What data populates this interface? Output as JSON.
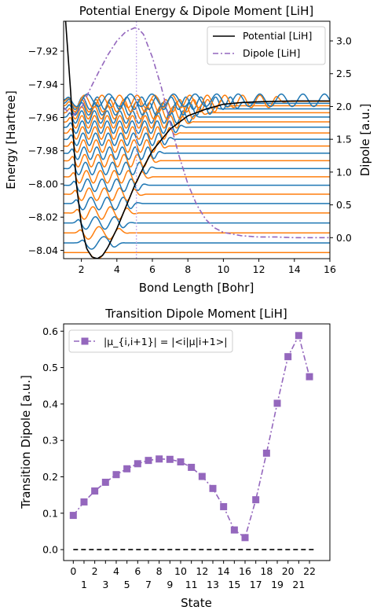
{
  "chart_data": [
    {
      "type": "line",
      "title": "Potential Energy & Dipole Moment [LiH]",
      "xlabel": "Bond Length [Bohr]",
      "ylabel": "Energy [Hartree]",
      "ylabel_right": "Dipole [a.u.]",
      "xlim": [
        1,
        16
      ],
      "ylim": [
        -8.045,
        -7.902
      ],
      "ylim_right": [
        -0.32,
        3.3
      ],
      "xticks": [
        "2",
        "4",
        "6",
        "8",
        "10",
        "12",
        "14",
        "16"
      ],
      "yticks": [
        "−7.92",
        "−7.94",
        "−7.96",
        "−7.98",
        "−8.00",
        "−8.02",
        "−8.04"
      ],
      "yticks_right": [
        "0.0",
        "0.5",
        "1.0",
        "1.5",
        "2.0",
        "2.5",
        "3.0"
      ],
      "legend": [
        "Potential [LiH]",
        "Dipole [LiH]"
      ],
      "legend_position": "upper right",
      "vertical_marker_x": 5.1,
      "colors": {
        "potential": "#000000",
        "dipole": "#9467bd",
        "wave_a": "#1f77b4",
        "wave_b": "#ff7f0e",
        "marker": "#c9b3ec"
      },
      "potential": {
        "name": "Potential [LiH]",
        "x": [
          1.1,
          1.4,
          1.7,
          2.0,
          2.3,
          2.6,
          2.9,
          3.2,
          3.5,
          4.0,
          4.5,
          5.0,
          5.5,
          6.0,
          7.0,
          8.0,
          9.0,
          10.0,
          11.0,
          12.0,
          14.0,
          16.0
        ],
        "y": [
          -7.9,
          -7.945,
          -7.998,
          -8.025,
          -8.039,
          -8.044,
          -8.045,
          -8.043,
          -8.038,
          -8.027,
          -8.014,
          -8.001,
          -7.99,
          -7.98,
          -7.967,
          -7.959,
          -7.955,
          -7.952,
          -7.951,
          -7.9505,
          -7.95,
          -7.95
        ]
      },
      "dipole": {
        "name": "Dipole [LiH]",
        "x": [
          1.0,
          1.5,
          2.0,
          2.5,
          3.0,
          3.5,
          4.0,
          4.5,
          5.0,
          5.2,
          5.5,
          6.0,
          6.5,
          7.0,
          7.5,
          8.0,
          8.5,
          9.0,
          9.5,
          10.0,
          11.0,
          12.0,
          13.0,
          14.0,
          15.0,
          16.0
        ],
        "y": [
          1.98,
          1.86,
          1.98,
          2.27,
          2.54,
          2.79,
          3.0,
          3.14,
          3.2,
          3.19,
          3.1,
          2.75,
          2.3,
          1.76,
          1.25,
          0.82,
          0.5,
          0.28,
          0.15,
          0.08,
          0.03,
          0.01,
          0.01,
          0.0,
          0.0,
          0.0
        ]
      },
      "vibrational_levels": [
        -8.0413,
        -8.0355,
        -8.0295,
        -8.0235,
        -8.0175,
        -8.0118,
        -8.0062,
        -8.0008,
        -7.9957,
        -7.9907,
        -7.986,
        -7.9815,
        -7.9772,
        -7.9731,
        -7.9693,
        -7.9658,
        -7.9626,
        -7.9597,
        -7.9571,
        -7.9548,
        -7.9529,
        -7.9514,
        -7.9503,
        -7.9496
      ]
    },
    {
      "type": "line",
      "title": "Transition Dipole Moment [LiH]",
      "xlabel": "State",
      "ylabel": "Transition Dipole [a.u.]",
      "xlim": [
        -0.9,
        23.9
      ],
      "ylim": [
        -0.03,
        0.62
      ],
      "xticks": [
        "0",
        "1",
        "2",
        "3",
        "4",
        "5",
        "6",
        "7",
        "8",
        "9",
        "10",
        "11",
        "12",
        "13",
        "14",
        "15",
        "16",
        "17",
        "18",
        "19",
        "20",
        "21",
        "22"
      ],
      "yticks": [
        "0.0",
        "0.1",
        "0.2",
        "0.3",
        "0.4",
        "0.5",
        "0.6"
      ],
      "legend": [
        "|μ_{i,i+1}| = |<i|μ|i+1>|"
      ],
      "legend_position": "upper left",
      "series": [
        {
          "name": "|μ_{i,i+1}| = |<i|μ|i+1>|",
          "x": [
            0,
            1,
            2,
            3,
            4,
            5,
            6,
            7,
            8,
            9,
            10,
            11,
            12,
            13,
            14,
            15,
            16,
            17,
            18,
            19,
            20,
            21,
            22
          ],
          "values": [
            0.094,
            0.131,
            0.161,
            0.185,
            0.206,
            0.222,
            0.236,
            0.245,
            0.249,
            0.248,
            0.241,
            0.226,
            0.201,
            0.168,
            0.118,
            0.054,
            0.033,
            0.137,
            0.265,
            0.402,
            0.53,
            0.588,
            0.475
          ]
        }
      ],
      "baseline": 0.0,
      "colors": {
        "series": "#9467bd",
        "baseline": "#000000"
      }
    }
  ]
}
